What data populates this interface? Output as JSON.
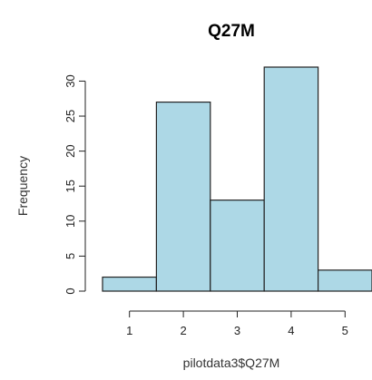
{
  "chart_data": {
    "type": "bar",
    "title": "Q27M",
    "xlabel": "pilotdata3$Q27M",
    "ylabel": "Frequency",
    "bins": [
      {
        "start": 0.5,
        "end": 1.5,
        "value": 2
      },
      {
        "start": 1.5,
        "end": 2.5,
        "value": 27
      },
      {
        "start": 2.5,
        "end": 3.5,
        "value": 13
      },
      {
        "start": 3.5,
        "end": 4.5,
        "value": 32
      },
      {
        "start": 4.5,
        "end": 5.5,
        "value": 3
      }
    ],
    "x_ticks": [
      1,
      2,
      3,
      4,
      5
    ],
    "y_ticks": [
      0,
      5,
      10,
      15,
      20,
      25,
      30
    ],
    "ylim": [
      0,
      32
    ],
    "xlim": [
      0.5,
      5.5
    ],
    "grid": false,
    "bar_color": "#add8e6",
    "edge_color": "#222222"
  }
}
